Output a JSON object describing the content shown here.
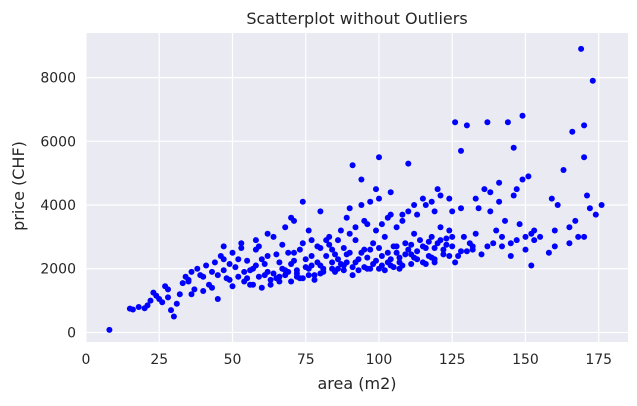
{
  "chart_data": {
    "type": "scatter",
    "title": "Scatterplot without Outliers",
    "xlabel": "area (m2)",
    "ylabel": "price (CHF)",
    "xlim": [
      0,
      185
    ],
    "ylim": [
      -300,
      9400
    ],
    "xticks": [
      0,
      25,
      50,
      75,
      100,
      125,
      150,
      175
    ],
    "yticks": [
      0,
      2000,
      4000,
      6000,
      8000
    ],
    "grid": true,
    "legend": "none",
    "colors": {
      "point": "#0000ff",
      "plot_background": "#eaeaf2",
      "grid": "#ffffff"
    },
    "points": [
      [
        8,
        80
      ],
      [
        15,
        750
      ],
      [
        16,
        720
      ],
      [
        18,
        800
      ],
      [
        20,
        760
      ],
      [
        21,
        850
      ],
      [
        23,
        1250
      ],
      [
        24,
        1150
      ],
      [
        25,
        1050
      ],
      [
        26,
        950
      ],
      [
        27,
        1450
      ],
      [
        28,
        1350
      ],
      [
        29,
        700
      ],
      [
        30,
        500
      ],
      [
        31,
        900
      ],
      [
        32,
        1200
      ],
      [
        33,
        1550
      ],
      [
        34,
        1750
      ],
      [
        35,
        1650
      ],
      [
        36,
        1900
      ],
      [
        37,
        1350
      ],
      [
        38,
        2000
      ],
      [
        39,
        1800
      ],
      [
        40,
        1300
      ],
      [
        41,
        2100
      ],
      [
        42,
        1500
      ],
      [
        43,
        1900
      ],
      [
        44,
        2200
      ],
      [
        45,
        1050
      ],
      [
        46,
        2400
      ],
      [
        47,
        2300
      ],
      [
        48,
        1700
      ],
      [
        49,
        2150
      ],
      [
        50,
        2500
      ],
      [
        50,
        1450
      ],
      [
        51,
        2050
      ],
      [
        52,
        1750
      ],
      [
        53,
        2650
      ],
      [
        54,
        1600
      ],
      [
        55,
        2250
      ],
      [
        56,
        1950
      ],
      [
        57,
        1500
      ],
      [
        58,
        2100
      ],
      [
        59,
        2700
      ],
      [
        60,
        1400
      ],
      [
        61,
        1800
      ],
      [
        62,
        2400
      ],
      [
        63,
        1650
      ],
      [
        64,
        3000
      ],
      [
        65,
        1700
      ],
      [
        66,
        2200
      ],
      [
        67,
        2750
      ],
      [
        68,
        1950
      ],
      [
        69,
        2500
      ],
      [
        70,
        3600
      ],
      [
        70,
        1600
      ],
      [
        71,
        2250
      ],
      [
        72,
        1850
      ],
      [
        73,
        2600
      ],
      [
        74,
        4100
      ],
      [
        74,
        1700
      ],
      [
        75,
        2050
      ],
      [
        76,
        3200
      ],
      [
        77,
        2400
      ],
      [
        78,
        1800
      ],
      [
        79,
        2700
      ],
      [
        80,
        3800
      ],
      [
        80,
        2100
      ],
      [
        81,
        1900
      ],
      [
        82,
        2900
      ],
      [
        83,
        3000
      ],
      [
        84,
        2200
      ],
      [
        85,
        2450
      ],
      [
        86,
        2000
      ],
      [
        87,
        3200
      ],
      [
        88,
        2650
      ],
      [
        89,
        2200
      ],
      [
        90,
        2500
      ],
      [
        90,
        3900
      ],
      [
        91,
        5250
      ],
      [
        91,
        1800
      ],
      [
        92,
        2900
      ],
      [
        93,
        2300
      ],
      [
        94,
        4800
      ],
      [
        95,
        2600
      ],
      [
        96,
        3400
      ],
      [
        97,
        2000
      ],
      [
        98,
        2800
      ],
      [
        99,
        4500
      ],
      [
        99,
        2250
      ],
      [
        100,
        5500
      ],
      [
        100,
        2650
      ],
      [
        101,
        2400
      ],
      [
        102,
        3000
      ],
      [
        103,
        2200
      ],
      [
        104,
        3700
      ],
      [
        105,
        2700
      ],
      [
        106,
        2500
      ],
      [
        107,
        2350
      ],
      [
        108,
        3700
      ],
      [
        109,
        2800
      ],
      [
        110,
        5300
      ],
      [
        110,
        2600
      ],
      [
        111,
        2450
      ],
      [
        112,
        3100
      ],
      [
        113,
        2300
      ],
      [
        114,
        2900
      ],
      [
        115,
        4200
      ],
      [
        116,
        2650
      ],
      [
        117,
        2400
      ],
      [
        118,
        3000
      ],
      [
        119,
        2200
      ],
      [
        120,
        4500
      ],
      [
        120,
        2800
      ],
      [
        121,
        3300
      ],
      [
        122,
        2600
      ],
      [
        123,
        2950
      ],
      [
        124,
        3200
      ],
      [
        125,
        2700
      ],
      [
        126,
        6600
      ],
      [
        127,
        2400
      ],
      [
        128,
        5700
      ],
      [
        129,
        3000
      ],
      [
        130,
        6500
      ],
      [
        131,
        2800
      ],
      [
        132,
        2600
      ],
      [
        133,
        3100
      ],
      [
        134,
        3900
      ],
      [
        135,
        2450
      ],
      [
        136,
        4500
      ],
      [
        137,
        6600
      ],
      [
        138,
        3800
      ],
      [
        139,
        2800
      ],
      [
        140,
        3200
      ],
      [
        141,
        4100
      ],
      [
        142,
        2700
      ],
      [
        143,
        3500
      ],
      [
        144,
        6600
      ],
      [
        145,
        2800
      ],
      [
        146,
        5800
      ],
      [
        147,
        4500
      ],
      [
        148,
        3400
      ],
      [
        149,
        6800
      ],
      [
        150,
        3000
      ],
      [
        151,
        4900
      ],
      [
        152,
        2100
      ],
      [
        153,
        2900
      ],
      [
        159,
        4200
      ],
      [
        160,
        3200
      ],
      [
        160,
        2700
      ],
      [
        161,
        4000
      ],
      [
        163,
        5100
      ],
      [
        165,
        2800
      ],
      [
        166,
        6300
      ],
      [
        167,
        3500
      ],
      [
        168,
        3000
      ],
      [
        169,
        8900
      ],
      [
        170,
        5500
      ],
      [
        170,
        6500
      ],
      [
        171,
        4300
      ],
      [
        172,
        3900
      ],
      [
        173,
        7900
      ],
      [
        174,
        3700
      ],
      [
        176,
        4000
      ],
      [
        22,
        1000
      ],
      [
        28,
        1100
      ],
      [
        36,
        1200
      ],
      [
        43,
        1400
      ],
      [
        47,
        1950
      ],
      [
        52,
        2300
      ],
      [
        55,
        1700
      ],
      [
        58,
        2600
      ],
      [
        61,
        2150
      ],
      [
        64,
        1850
      ],
      [
        67,
        2000
      ],
      [
        70,
        2150
      ],
      [
        72,
        1950
      ],
      [
        75,
        2300
      ],
      [
        77,
        2100
      ],
      [
        79,
        2200
      ],
      [
        82,
        2400
      ],
      [
        84,
        2600
      ],
      [
        86,
        2300
      ],
      [
        88,
        2100
      ],
      [
        89,
        2450
      ],
      [
        92,
        2200
      ],
      [
        94,
        2500
      ],
      [
        96,
        2350
      ],
      [
        97,
        2600
      ],
      [
        98,
        2150
      ],
      [
        101,
        2100
      ],
      [
        103,
        2500
      ],
      [
        104,
        2300
      ],
      [
        106,
        2700
      ],
      [
        107,
        2200
      ],
      [
        109,
        2450
      ],
      [
        111,
        2750
      ],
      [
        113,
        2550
      ],
      [
        115,
        2700
      ],
      [
        117,
        2850
      ],
      [
        119,
        2650
      ],
      [
        121,
        2900
      ],
      [
        123,
        2750
      ],
      [
        125,
        3000
      ],
      [
        63,
        1500
      ],
      [
        66,
        1750
      ],
      [
        69,
        1900
      ],
      [
        73,
        1700
      ],
      [
        76,
        2000
      ],
      [
        78,
        1650
      ],
      [
        81,
        2000
      ],
      [
        85,
        1900
      ],
      [
        87,
        2150
      ],
      [
        93,
        1950
      ],
      [
        95,
        2050
      ],
      [
        102,
        1950
      ],
      [
        105,
        2050
      ],
      [
        108,
        2100
      ],
      [
        112,
        2350
      ],
      [
        116,
        2150
      ],
      [
        118,
        2350
      ],
      [
        122,
        2450
      ],
      [
        126,
        2200
      ],
      [
        130,
        2550
      ],
      [
        57,
        2000
      ],
      [
        60,
        2300
      ],
      [
        65,
        2450
      ],
      [
        71,
        2500
      ],
      [
        74,
        2800
      ],
      [
        80,
        2650
      ],
      [
        83,
        2750
      ],
      [
        86,
        2900
      ],
      [
        90,
        3100
      ],
      [
        92,
        3300
      ],
      [
        95,
        3500
      ],
      [
        99,
        3200
      ],
      [
        101,
        3400
      ],
      [
        103,
        3600
      ],
      [
        106,
        3300
      ],
      [
        108,
        3500
      ],
      [
        110,
        3800
      ],
      [
        113,
        3700
      ],
      [
        116,
        4000
      ],
      [
        119,
        3800
      ],
      [
        121,
        4300
      ],
      [
        124,
        4200
      ],
      [
        128,
        3900
      ],
      [
        133,
        4200
      ],
      [
        138,
        4400
      ],
      [
        141,
        4700
      ],
      [
        146,
        4300
      ],
      [
        149,
        4800
      ],
      [
        153,
        3200
      ],
      [
        47,
        2700
      ],
      [
        53,
        2800
      ],
      [
        58,
        2900
      ],
      [
        62,
        3100
      ],
      [
        68,
        3300
      ],
      [
        71,
        3500
      ],
      [
        77,
        2900
      ],
      [
        89,
        3600
      ],
      [
        94,
        4000
      ],
      [
        97,
        4100
      ],
      [
        100,
        4200
      ],
      [
        104,
        4400
      ],
      [
        112,
        4000
      ],
      [
        118,
        4100
      ],
      [
        125,
        3800
      ],
      [
        145,
        2400
      ],
      [
        150,
        2600
      ],
      [
        155,
        3000
      ],
      [
        158,
        2500
      ],
      [
        165,
        3300
      ],
      [
        170,
        3000
      ],
      [
        35,
        1600
      ],
      [
        40,
        1750
      ],
      [
        45,
        1800
      ],
      [
        49,
        1650
      ],
      [
        54,
        1900
      ],
      [
        56,
        1500
      ],
      [
        59,
        1750
      ],
      [
        62,
        1900
      ],
      [
        66,
        1600
      ],
      [
        68,
        1800
      ],
      [
        72,
        1750
      ],
      [
        76,
        1800
      ],
      [
        80,
        1850
      ],
      [
        84,
        2000
      ],
      [
        88,
        1950
      ],
      [
        91,
        2050
      ],
      [
        96,
        2000
      ],
      [
        100,
        2000
      ],
      [
        104,
        2100
      ],
      [
        107,
        2000
      ],
      [
        111,
        2150
      ],
      [
        115,
        2200
      ],
      [
        119,
        2300
      ],
      [
        124,
        2400
      ],
      [
        128,
        2550
      ],
      [
        132,
        2700
      ],
      [
        137,
        2700
      ],
      [
        142,
        3000
      ],
      [
        147,
        2900
      ],
      [
        152,
        3100
      ]
    ]
  }
}
